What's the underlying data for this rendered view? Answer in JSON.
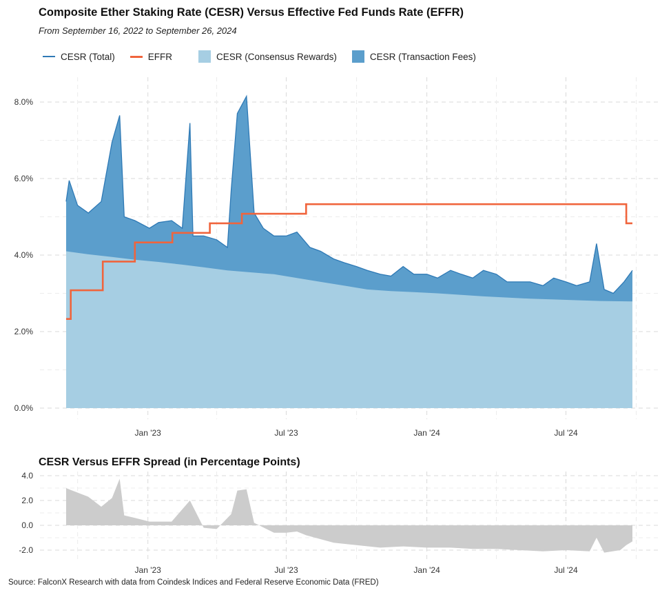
{
  "chart_data": [
    {
      "type": "area",
      "title": "Composite Ether Staking Rate (CESR) Versus Effective Fed Funds Rate (EFFR)",
      "subtitle": "From September 16, 2022 to September 26, 2024",
      "x_range": [
        "2022-09-16",
        "2024-09-26"
      ],
      "ylim": [
        0,
        8.5
      ],
      "y_ticks": [
        "0.0%",
        "2.0%",
        "4.0%",
        "6.0%",
        "8.0%"
      ],
      "y_tick_values": [
        0,
        2,
        4,
        6,
        8
      ],
      "x_ticks": [
        "Jan '23",
        "Jul '23",
        "Jan '24",
        "Jul '24"
      ],
      "x_tick_dates": [
        "2023-01-01",
        "2023-07-01",
        "2024-01-01",
        "2024-07-01"
      ],
      "grid": true,
      "legend_position": "top-left",
      "legend": [
        "CESR (Total)",
        "EFFR",
        "CESR (Consensus Rewards)",
        "CESR (Transaction Fees)"
      ],
      "colors": {
        "cesr_total": "#2e79b5",
        "effr": "#f0643c",
        "consensus": "#a6cee3",
        "fees": "#5b9ecc"
      },
      "series": [
        {
          "name": "CESR (Consensus Rewards)",
          "x": [
            "2022-09-16",
            "2022-10-15",
            "2022-11-15",
            "2022-12-15",
            "2023-01-15",
            "2023-02-15",
            "2023-03-15",
            "2023-04-15",
            "2023-05-15",
            "2023-06-15",
            "2023-07-15",
            "2023-08-15",
            "2023-09-15",
            "2023-10-15",
            "2023-11-15",
            "2023-12-15",
            "2024-01-15",
            "2024-02-15",
            "2024-03-15",
            "2024-04-15",
            "2024-05-15",
            "2024-06-15",
            "2024-07-15",
            "2024-08-15",
            "2024-09-26"
          ],
          "values": [
            4.1,
            4.02,
            3.95,
            3.88,
            3.82,
            3.75,
            3.68,
            3.6,
            3.55,
            3.5,
            3.4,
            3.3,
            3.2,
            3.1,
            3.06,
            3.03,
            3.0,
            2.96,
            2.92,
            2.89,
            2.86,
            2.84,
            2.82,
            2.8,
            2.79
          ]
        },
        {
          "name": "CESR (Total)",
          "x": [
            "2022-09-16",
            "2022-09-20",
            "2022-10-01",
            "2022-10-15",
            "2022-11-01",
            "2022-11-15",
            "2022-11-25",
            "2022-12-01",
            "2022-12-15",
            "2023-01-03",
            "2023-01-15",
            "2023-02-01",
            "2023-02-15",
            "2023-02-25",
            "2023-03-01",
            "2023-03-15",
            "2023-04-01",
            "2023-04-15",
            "2023-04-20",
            "2023-04-28",
            "2023-05-10",
            "2023-05-20",
            "2023-06-01",
            "2023-06-15",
            "2023-07-01",
            "2023-07-15",
            "2023-08-01",
            "2023-08-15",
            "2023-09-01",
            "2023-09-15",
            "2023-10-01",
            "2023-10-15",
            "2023-11-01",
            "2023-11-15",
            "2023-12-01",
            "2023-12-15",
            "2024-01-01",
            "2024-01-15",
            "2024-02-01",
            "2024-02-15",
            "2024-03-01",
            "2024-03-15",
            "2024-04-01",
            "2024-04-15",
            "2024-05-01",
            "2024-05-15",
            "2024-06-01",
            "2024-06-15",
            "2024-07-01",
            "2024-07-15",
            "2024-08-01",
            "2024-08-10",
            "2024-08-20",
            "2024-09-01",
            "2024-09-15",
            "2024-09-26"
          ],
          "values": [
            5.4,
            5.95,
            5.3,
            5.1,
            5.4,
            6.95,
            7.65,
            5.0,
            4.9,
            4.7,
            4.85,
            4.9,
            4.7,
            7.45,
            4.5,
            4.5,
            4.4,
            4.2,
            5.7,
            7.7,
            8.15,
            5.1,
            4.7,
            4.5,
            4.5,
            4.6,
            4.2,
            4.1,
            3.9,
            3.8,
            3.7,
            3.6,
            3.5,
            3.45,
            3.7,
            3.5,
            3.5,
            3.4,
            3.6,
            3.5,
            3.4,
            3.6,
            3.5,
            3.3,
            3.3,
            3.3,
            3.2,
            3.4,
            3.3,
            3.2,
            3.3,
            4.3,
            3.1,
            3.0,
            3.3,
            3.6
          ]
        },
        {
          "name": "EFFR",
          "x": [
            "2022-09-16",
            "2022-09-22",
            "2022-11-03",
            "2022-12-15",
            "2023-02-02",
            "2023-03-23",
            "2023-05-04",
            "2023-06-15",
            "2023-07-27",
            "2024-09-18",
            "2024-09-26"
          ],
          "values": [
            2.33,
            3.08,
            3.83,
            4.33,
            4.58,
            4.83,
            5.08,
            5.08,
            5.33,
            4.83,
            4.83
          ]
        }
      ]
    },
    {
      "type": "area",
      "title": "CESR Versus EFFR Spread (in Percentage Points)",
      "ylim": [
        -2.8,
        4.3
      ],
      "y_ticks": [
        "4.0",
        "2.0",
        "0.0",
        "-2.0"
      ],
      "y_tick_values": [
        4,
        2,
        0,
        -2
      ],
      "x_ticks": [
        "Jan '23",
        "Jul '23",
        "Jan '24",
        "Jul '24"
      ],
      "x_tick_dates": [
        "2023-01-01",
        "2023-07-01",
        "2024-01-01",
        "2024-07-01"
      ],
      "grid": true,
      "color": "#cccccc",
      "series": [
        {
          "name": "Spread",
          "x": [
            "2022-09-16",
            "2022-09-22",
            "2022-10-15",
            "2022-11-01",
            "2022-11-15",
            "2022-11-25",
            "2022-12-01",
            "2022-12-15",
            "2023-01-03",
            "2023-02-01",
            "2023-02-25",
            "2023-03-15",
            "2023-04-01",
            "2023-04-20",
            "2023-04-28",
            "2023-05-10",
            "2023-05-20",
            "2023-06-15",
            "2023-07-01",
            "2023-07-15",
            "2023-07-27",
            "2023-09-01",
            "2023-10-01",
            "2023-11-01",
            "2023-12-01",
            "2024-01-01",
            "2024-02-01",
            "2024-03-01",
            "2024-04-01",
            "2024-05-01",
            "2024-06-01",
            "2024-07-01",
            "2024-08-01",
            "2024-08-10",
            "2024-08-20",
            "2024-09-10",
            "2024-09-18",
            "2024-09-26"
          ],
          "values": [
            3.0,
            2.85,
            2.3,
            1.5,
            2.2,
            3.75,
            0.8,
            0.6,
            0.3,
            0.3,
            2.0,
            -0.2,
            -0.3,
            0.9,
            2.8,
            2.9,
            0.2,
            -0.6,
            -0.6,
            -0.5,
            -0.8,
            -1.4,
            -1.6,
            -1.8,
            -1.7,
            -1.8,
            -1.8,
            -1.9,
            -1.9,
            -2.0,
            -2.1,
            -2.0,
            -2.1,
            -1.0,
            -2.2,
            -2.0,
            -1.6,
            -1.3
          ]
        }
      ]
    }
  ],
  "source": "Source: FalconX Research with data from Coindesk Indices and Federal Reserve Economic Data (FRED)"
}
